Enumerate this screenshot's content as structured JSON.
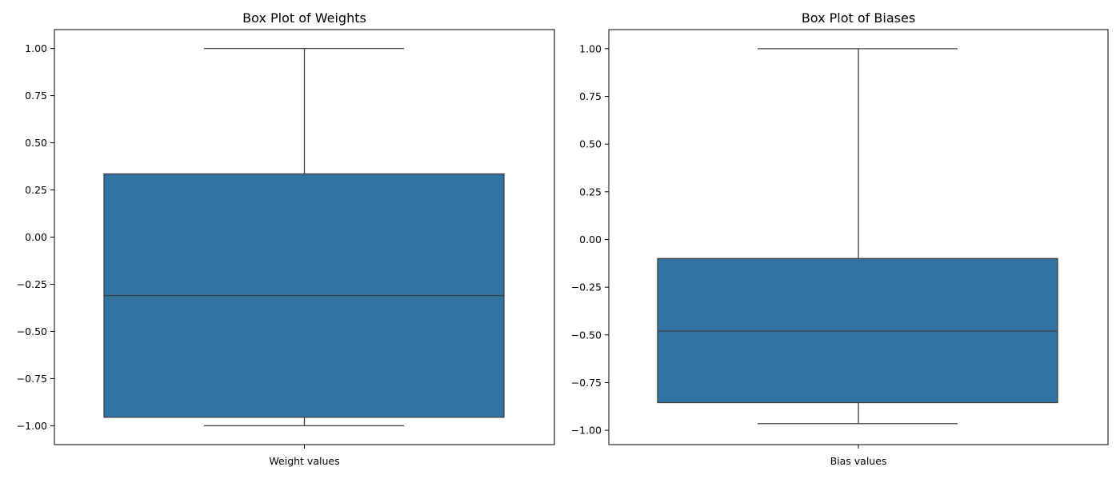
{
  "chart_data": [
    {
      "type": "box",
      "title": "Box Plot of Weights",
      "xlabel": "Weight values",
      "ylabel": "",
      "ylim": [
        -1.1,
        1.1
      ],
      "yticks": [
        1.0,
        0.75,
        0.5,
        0.25,
        0.0,
        -0.25,
        -0.5,
        -0.75,
        -1.0
      ],
      "ytick_labels": [
        "1.00",
        "0.75",
        "0.50",
        "0.25",
        "0.00",
        "−0.25",
        "−0.50",
        "−0.75",
        "−1.00"
      ],
      "box": {
        "whisker_low": -1.0,
        "q1": -0.955,
        "median": -0.31,
        "q3": 0.335,
        "whisker_high": 1.0
      },
      "grid": false,
      "color": "#3274a1"
    },
    {
      "type": "box",
      "title": "Box Plot of Biases",
      "xlabel": "Bias values",
      "ylabel": "",
      "ylim": [
        -1.075,
        1.1
      ],
      "yticks": [
        1.0,
        0.75,
        0.5,
        0.25,
        0.0,
        -0.25,
        -0.5,
        -0.75,
        -1.0
      ],
      "ytick_labels": [
        "1.00",
        "0.75",
        "0.50",
        "0.25",
        "0.00",
        "−0.25",
        "−0.50",
        "−0.75",
        "−1.00"
      ],
      "box": {
        "whisker_low": -0.965,
        "q1": -0.855,
        "median": -0.48,
        "q3": -0.1,
        "whisker_high": 1.0
      },
      "grid": false,
      "color": "#3274a1"
    }
  ]
}
